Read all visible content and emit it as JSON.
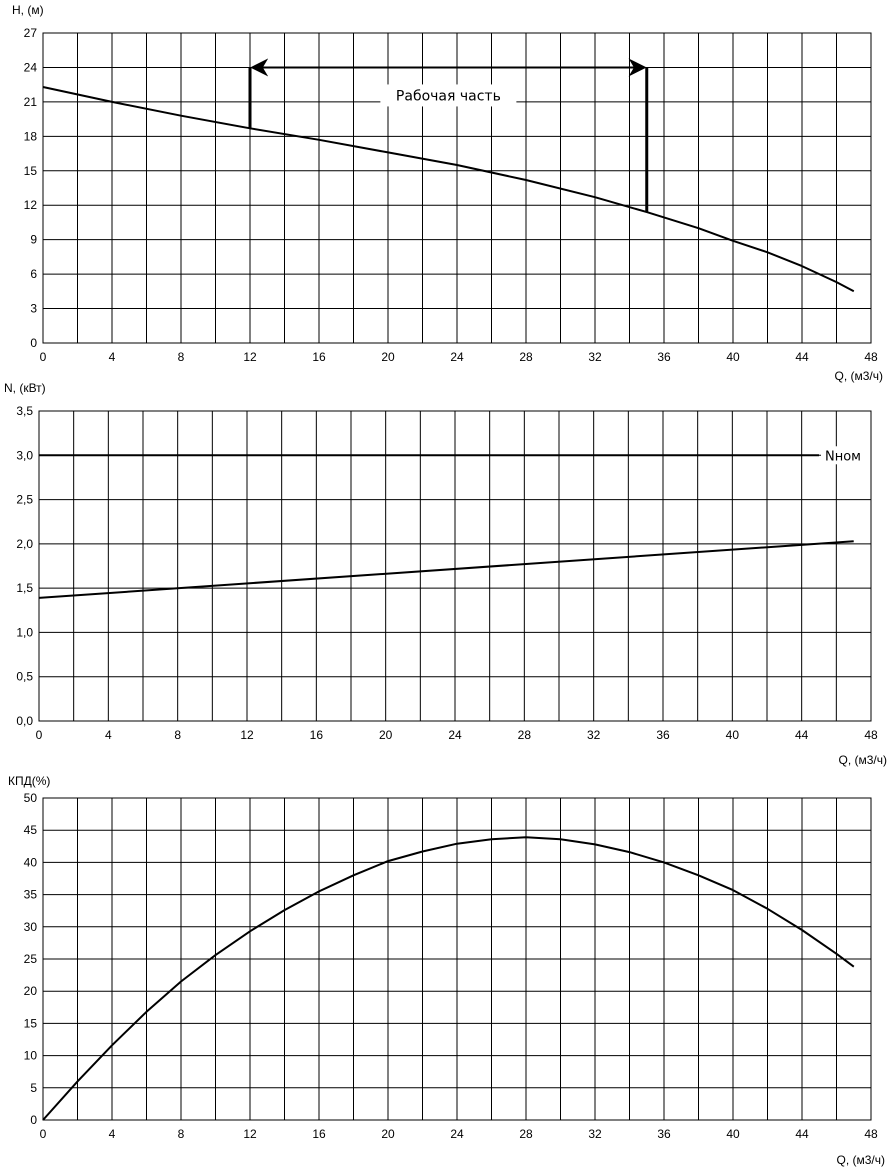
{
  "chart_data": [
    {
      "type": "line",
      "ylabel": "H, (м)",
      "xlabel": "Q, (м3/ч)",
      "xlim": [
        0,
        48
      ],
      "ylim": [
        0,
        27
      ],
      "xticks": [
        0,
        4,
        8,
        12,
        16,
        20,
        24,
        28,
        32,
        36,
        40,
        44,
        48
      ],
      "yticks": [
        0,
        3,
        6,
        9,
        12,
        15,
        18,
        21,
        24,
        27
      ],
      "x_grid_step": 2,
      "grid": true,
      "series": [
        {
          "x": [
            0,
            4,
            8,
            12,
            16,
            20,
            24,
            28,
            32,
            35,
            38,
            40,
            42,
            44,
            46,
            47
          ],
          "values": [
            22.3,
            21.0,
            19.8,
            18.7,
            17.7,
            16.6,
            15.5,
            14.2,
            12.7,
            11.4,
            10.0,
            8.9,
            7.9,
            6.7,
            5.3,
            4.5
          ]
        }
      ],
      "annotation": {
        "label": "Рабочая часть",
        "x_start": 12,
        "x_end": 35,
        "y_arrow": 24
      }
    },
    {
      "type": "line",
      "ylabel": "N, (кВт)",
      "xlabel": "Q, (м3/ч)",
      "xlim": [
        0,
        48
      ],
      "ylim": [
        0,
        3.5
      ],
      "xticks": [
        0,
        4,
        8,
        12,
        16,
        20,
        24,
        28,
        32,
        36,
        40,
        44,
        48
      ],
      "yticks": [
        0,
        0.5,
        1.0,
        1.5,
        2.0,
        2.5,
        3.0,
        3.5
      ],
      "ytick_labels": [
        "0,0",
        "0,5",
        "1,0",
        "1,5",
        "2,0",
        "2,5",
        "3,0",
        "3,5"
      ],
      "x_grid_step": 2,
      "grid": true,
      "series": [
        {
          "x": [
            0,
            47
          ],
          "values": [
            1.39,
            2.03
          ]
        }
      ],
      "reference_line": {
        "label": "Nном",
        "y": 3.0,
        "x_start": 0,
        "x_end": 45
      }
    },
    {
      "type": "line",
      "ylabel": "КПД(%)",
      "xlabel": "Q, (м3/ч)",
      "xlim": [
        0,
        48
      ],
      "ylim": [
        0,
        50
      ],
      "xticks": [
        0,
        4,
        8,
        12,
        16,
        20,
        24,
        28,
        32,
        36,
        40,
        44,
        48
      ],
      "yticks": [
        0,
        5,
        10,
        15,
        20,
        25,
        30,
        35,
        40,
        45,
        50
      ],
      "x_grid_step": 2,
      "grid": true,
      "series": [
        {
          "x": [
            0,
            2,
            4,
            6,
            8,
            10,
            12,
            14,
            16,
            18,
            20,
            22,
            24,
            26,
            28,
            30,
            32,
            34,
            36,
            38,
            40,
            42,
            44,
            46,
            47
          ],
          "values": [
            0,
            6.0,
            11.6,
            16.8,
            21.5,
            25.6,
            29.3,
            32.6,
            35.5,
            38.0,
            40.2,
            41.7,
            42.9,
            43.6,
            43.9,
            43.6,
            42.8,
            41.6,
            40.0,
            38.0,
            35.7,
            32.8,
            29.5,
            25.8,
            23.8
          ]
        }
      ]
    }
  ]
}
